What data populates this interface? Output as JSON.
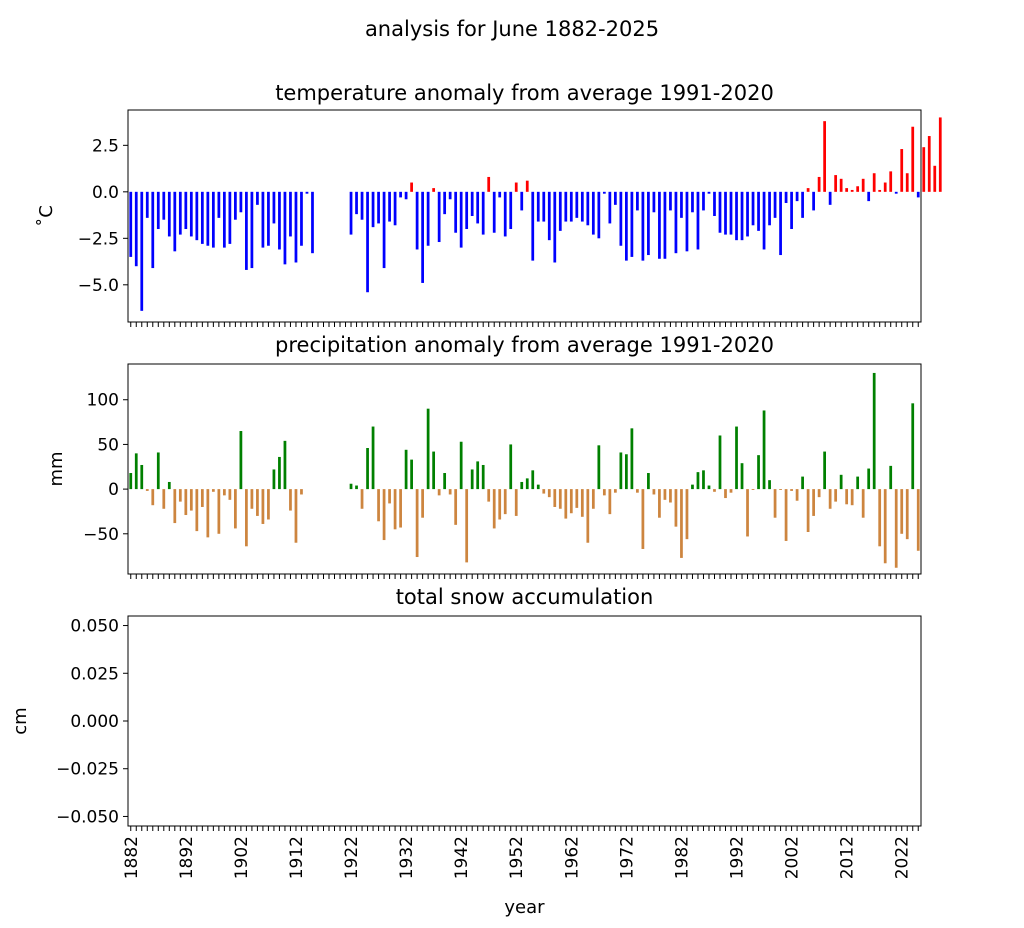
{
  "figure_title": "analysis for June 1882-2025",
  "x_label": "year",
  "x_tick_labels": [
    "1882",
    "1892",
    "1902",
    "1912",
    "1922",
    "1932",
    "1942",
    "1952",
    "1962",
    "1972",
    "1982",
    "1992",
    "2002",
    "2012",
    "2022"
  ],
  "colors": {
    "temp_positive": "#ff0000",
    "temp_negative": "#0000ff",
    "precip_positive": "#008000",
    "precip_negative": "#cd853f"
  },
  "chart_data": [
    {
      "type": "bar",
      "title": "temperature anomaly from average 1991-2020",
      "ylabel": "˚C",
      "ylim": [
        -7.0,
        4.4
      ],
      "yticks": [
        -5.0,
        -2.5,
        0.0,
        2.5
      ],
      "ytick_labels": [
        "−5.0",
        "−2.5",
        "0.0",
        "2.5"
      ],
      "x_start_year": 1882,
      "values": [
        -3.5,
        -4.0,
        -6.4,
        -1.4,
        -4.1,
        -2.0,
        -1.5,
        -2.4,
        -3.2,
        -2.3,
        -2.0,
        -2.4,
        -2.6,
        -2.8,
        -2.9,
        -3.0,
        -1.4,
        -3.0,
        -2.8,
        -1.5,
        -1.1,
        -4.2,
        -4.1,
        -0.7,
        -3.0,
        -2.9,
        -1.7,
        -3.1,
        -3.9,
        -2.4,
        -3.8,
        -2.9,
        -0.1,
        -3.3,
        null,
        null,
        null,
        null,
        null,
        null,
        -2.3,
        -1.2,
        -1.5,
        -5.4,
        -1.9,
        -1.7,
        -4.1,
        -1.6,
        -1.8,
        -0.3,
        -0.4,
        0.5,
        -3.1,
        -4.9,
        -2.9,
        0.2,
        -2.7,
        -1.2,
        -0.4,
        -2.2,
        -3.0,
        -2.0,
        -1.3,
        -1.7,
        -2.3,
        0.8,
        -2.2,
        -0.3,
        -2.4,
        -2.0,
        0.5,
        -1.0,
        0.6,
        -3.7,
        -1.6,
        -1.6,
        -2.6,
        -3.8,
        -2.1,
        -1.6,
        -1.6,
        -1.4,
        -1.6,
        -1.8,
        -2.3,
        -2.5,
        -0.1,
        -1.7,
        -0.7,
        -2.9,
        -3.7,
        -3.5,
        -1.0,
        -3.7,
        -3.4,
        -1.1,
        -3.6,
        -3.6,
        -1.0,
        -3.3,
        -1.4,
        -3.2,
        -1.1,
        -3.1,
        -1.0,
        -0.1,
        -1.3,
        -2.2,
        -2.3,
        -2.3,
        -2.6,
        -2.6,
        -2.4,
        -1.8,
        -2.1,
        -3.1,
        -1.8,
        -1.4,
        -3.4,
        -0.6,
        -2.0,
        -0.5,
        -1.4,
        0.2,
        -1.0,
        0.8,
        3.8,
        -0.7,
        0.9,
        0.7,
        0.2,
        0.1,
        0.3,
        0.7,
        -0.5,
        1.0,
        0.1,
        0.5,
        1.1,
        -0.1,
        2.3,
        1.0,
        3.5,
        -0.3,
        2.4,
        3.0,
        1.4,
        4.0
      ]
    },
    {
      "type": "bar",
      "title": "precipitation anomaly from average 1991-2020",
      "ylabel": "mm",
      "ylim": [
        -95,
        140
      ],
      "yticks": [
        -50,
        0,
        50,
        100
      ],
      "ytick_labels": [
        "−50",
        "0",
        "50",
        "100"
      ],
      "x_start_year": 1882,
      "values": [
        18,
        40,
        27,
        -2,
        -18,
        41,
        -22,
        8,
        -38,
        -14,
        -29,
        -24,
        -47,
        -20,
        -54,
        -3,
        -50,
        -7,
        -12,
        -44,
        65,
        -64,
        -22,
        -30,
        -39,
        -34,
        22,
        36,
        54,
        -24,
        -60,
        -6,
        null,
        null,
        null,
        null,
        null,
        null,
        null,
        null,
        6,
        4,
        -22,
        46,
        70,
        -36,
        -57,
        -16,
        -45,
        -43,
        44,
        33,
        -76,
        -32,
        90,
        42,
        -7,
        18,
        -6,
        -40,
        53,
        -82,
        22,
        31,
        27,
        -14,
        -44,
        -34,
        -28,
        50,
        -30,
        8,
        12,
        21,
        5,
        -5,
        -9,
        -20,
        -22,
        -33,
        -27,
        -21,
        -31,
        -60,
        -22,
        49,
        -7,
        -28,
        -4,
        41,
        39,
        68,
        -4,
        -67,
        18,
        -6,
        -32,
        -12,
        -15,
        -42,
        -77,
        -56,
        5,
        19,
        21,
        4,
        -3,
        60,
        -10,
        -4,
        70,
        29,
        -53,
        -1,
        38,
        88,
        10,
        -32,
        -1,
        -58,
        -2,
        -13,
        14,
        -48,
        -30,
        -9,
        42,
        -22,
        -14,
        16,
        -17,
        -18,
        14,
        -32,
        23,
        130,
        -64,
        -83,
        26,
        -88,
        -50,
        -56,
        96,
        -69
      ]
    },
    {
      "type": "bar",
      "title": "total snow accumulation",
      "ylabel": "cm",
      "ylim": [
        -0.055,
        0.055
      ],
      "yticks": [
        -0.05,
        -0.025,
        0.0,
        0.025,
        0.05
      ],
      "ytick_labels": [
        "−0.050",
        "−0.025",
        "0.000",
        "0.025",
        "0.050"
      ],
      "x_start_year": 1882,
      "values": []
    }
  ]
}
